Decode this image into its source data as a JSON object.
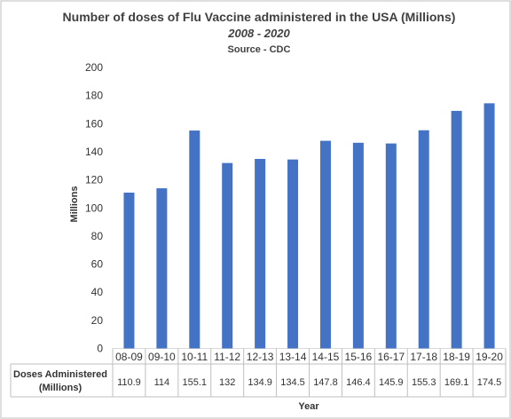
{
  "chart_data": {
    "type": "bar",
    "title": "Number of doses of Flu Vaccine administered in the USA (Millions)",
    "subtitle": "2008 - 2020",
    "source": "Source - CDC",
    "xlabel": "Year",
    "ylabel": "Millions",
    "ylim": [
      0,
      200
    ],
    "yticks": [
      0,
      20,
      40,
      60,
      80,
      100,
      120,
      140,
      160,
      180,
      200
    ],
    "grid": false,
    "categories": [
      "08-09",
      "09-10",
      "10-11",
      "11-12",
      "12-13",
      "13-14",
      "14-15",
      "15-16",
      "16-17",
      "17-18",
      "18-19",
      "19-20"
    ],
    "series": [
      {
        "name": "Doses Administered (Millions)",
        "values": [
          110.9,
          114,
          155.1,
          132,
          134.9,
          134.5,
          147.8,
          146.4,
          145.9,
          155.3,
          169.1,
          174.5
        ],
        "color": "#4472c4"
      }
    ],
    "data_table": {
      "row_label_line1": "Doses Administered",
      "row_label_line2": "(Millions)",
      "values_text": [
        "110.9",
        "114",
        "155.1",
        "132",
        "134.9",
        "134.5",
        "147.8",
        "146.4",
        "145.9",
        "155.3",
        "169.1",
        "174.5"
      ]
    },
    "colors": {
      "bar": "#4472c4",
      "border": "#bfbfbf",
      "axis": "#d9d9d9",
      "text": "#404040"
    }
  }
}
